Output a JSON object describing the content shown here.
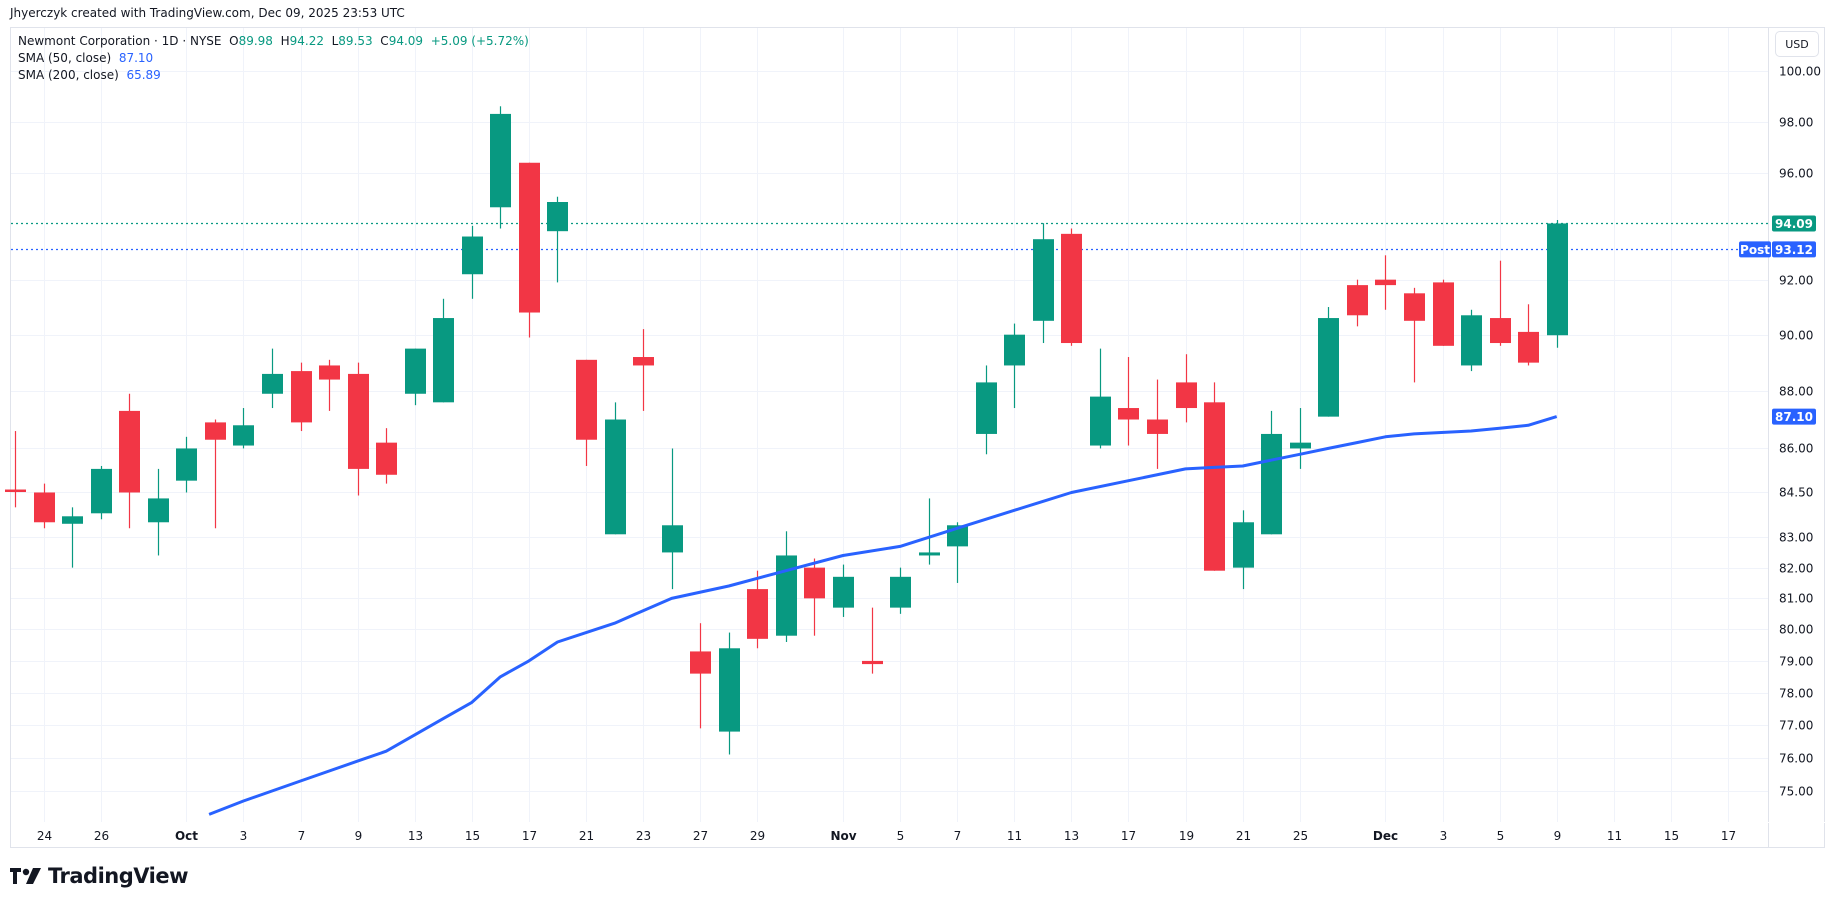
{
  "header": {
    "credit": "Jhyerczyk created with TradingView.com, Dec 09, 2025 23:53 UTC"
  },
  "legend": {
    "symbol": "Newmont Corporation · 1D · NYSE",
    "open_label": "O",
    "open": "89.98",
    "high_label": "H",
    "high": "94.22",
    "low_label": "L",
    "low": "89.53",
    "close_label": "C",
    "close": "94.09",
    "change": "+5.09 (+5.72%)",
    "sma50_label": "SMA (50, close)",
    "sma50_value": "87.10",
    "sma200_label": "SMA (200, close)",
    "sma200_value": "65.89"
  },
  "price_axis": {
    "currency": "USD",
    "last_price_label": "94.09",
    "post_label": "Post",
    "post_price": "93.12",
    "sma_label": "87.10"
  },
  "colors": {
    "up": "#089981",
    "down": "#f23645",
    "sma50": "#2962ff",
    "grid": "#f0f3fa",
    "post": "#2962ff"
  },
  "footer": {
    "brand": "TradingView"
  },
  "chart_data": {
    "type": "candlestick",
    "title": "Newmont Corporation · 1D · NYSE",
    "scale": "log",
    "ylim": [
      74.3,
      101.2
    ],
    "yticks": [
      100,
      98,
      96,
      92,
      90,
      88,
      86,
      84.5,
      83,
      82,
      81,
      80,
      79,
      78,
      77,
      76,
      75
    ],
    "xtick_labels": [
      {
        "i": 1,
        "label": "24"
      },
      {
        "i": 3,
        "label": "26"
      },
      {
        "i": 6,
        "label": "Oct",
        "bold": true
      },
      {
        "i": 8,
        "label": "3"
      },
      {
        "i": 10,
        "label": "7"
      },
      {
        "i": 12,
        "label": "9"
      },
      {
        "i": 14,
        "label": "13"
      },
      {
        "i": 16,
        "label": "15"
      },
      {
        "i": 18,
        "label": "17"
      },
      {
        "i": 20,
        "label": "21"
      },
      {
        "i": 22,
        "label": "23"
      },
      {
        "i": 24,
        "label": "27"
      },
      {
        "i": 26,
        "label": "29"
      },
      {
        "i": 29,
        "label": "Nov",
        "bold": true
      },
      {
        "i": 31,
        "label": "5"
      },
      {
        "i": 33,
        "label": "7"
      },
      {
        "i": 35,
        "label": "11"
      },
      {
        "i": 37,
        "label": "13"
      },
      {
        "i": 39,
        "label": "17"
      },
      {
        "i": 41,
        "label": "19"
      },
      {
        "i": 43,
        "label": "21"
      },
      {
        "i": 45,
        "label": "25"
      },
      {
        "i": 48,
        "label": "Dec",
        "bold": true
      },
      {
        "i": 50,
        "label": "3"
      },
      {
        "i": 52,
        "label": "5"
      },
      {
        "i": 54,
        "label": "9"
      },
      {
        "i": 56,
        "label": "11"
      },
      {
        "i": 58,
        "label": "15"
      },
      {
        "i": 60,
        "label": "17"
      }
    ],
    "dates": [
      "Sep 23",
      "Sep 24",
      "Sep 25",
      "Sep 26",
      "Sep 29",
      "Sep 30",
      "Oct 1",
      "Oct 2",
      "Oct 3",
      "Oct 6",
      "Oct 7",
      "Oct 8",
      "Oct 9",
      "Oct 10",
      "Oct 13",
      "Oct 14",
      "Oct 15",
      "Oct 16",
      "Oct 17",
      "Oct 20",
      "Oct 21",
      "Oct 22",
      "Oct 23",
      "Oct 24",
      "Oct 27",
      "Oct 28",
      "Oct 29",
      "Oct 30",
      "Oct 31",
      "Nov 3",
      "Nov 4",
      "Nov 5",
      "Nov 6",
      "Nov 7",
      "Nov 10",
      "Nov 11",
      "Nov 12",
      "Nov 13",
      "Nov 14",
      "Nov 17",
      "Nov 18",
      "Nov 19",
      "Nov 20",
      "Nov 21",
      "Nov 24",
      "Nov 25",
      "Nov 26",
      "Nov 28",
      "Dec 1",
      "Dec 2",
      "Dec 3",
      "Dec 4",
      "Dec 5",
      "Dec 8",
      "Dec 9"
    ],
    "ohlc": [
      [
        84.6,
        86.6,
        84.0,
        84.55
      ],
      [
        84.5,
        84.8,
        83.3,
        83.5
      ],
      [
        83.45,
        84.0,
        82.0,
        83.7
      ],
      [
        83.8,
        85.4,
        83.6,
        85.3
      ],
      [
        87.3,
        87.9,
        83.3,
        84.5
      ],
      [
        83.5,
        85.3,
        82.4,
        84.3
      ],
      [
        84.9,
        86.4,
        84.5,
        86.0
      ],
      [
        86.9,
        87.0,
        83.3,
        86.3
      ],
      [
        86.1,
        87.4,
        86.0,
        86.8
      ],
      [
        87.9,
        89.5,
        87.4,
        88.6
      ],
      [
        88.7,
        89.0,
        86.6,
        86.9
      ],
      [
        88.9,
        89.1,
        87.3,
        88.4
      ],
      [
        88.6,
        89.0,
        84.4,
        85.3
      ],
      [
        86.2,
        86.7,
        84.8,
        85.1
      ],
      [
        87.9,
        89.5,
        87.5,
        89.5
      ],
      [
        87.6,
        91.3,
        87.6,
        90.6
      ],
      [
        92.2,
        94.0,
        91.3,
        93.6
      ],
      [
        94.7,
        98.6,
        93.9,
        98.3
      ],
      [
        96.4,
        96.4,
        89.9,
        90.8
      ],
      [
        93.8,
        95.1,
        91.9,
        94.9
      ],
      [
        89.1,
        89.1,
        85.4,
        86.3
      ],
      [
        83.1,
        87.6,
        83.1,
        87.0
      ],
      [
        89.2,
        90.2,
        87.3,
        88.9
      ],
      [
        82.5,
        86.0,
        81.3,
        83.4
      ],
      [
        79.3,
        80.2,
        76.9,
        78.6
      ],
      [
        76.8,
        79.9,
        76.1,
        79.4
      ],
      [
        81.3,
        81.9,
        79.4,
        79.7
      ],
      [
        79.8,
        83.2,
        79.6,
        82.4
      ],
      [
        82.0,
        82.3,
        79.8,
        81.0
      ],
      [
        80.7,
        82.1,
        80.4,
        81.7
      ],
      [
        79.0,
        80.7,
        78.6,
        78.9
      ],
      [
        80.7,
        82.0,
        80.5,
        81.7
      ],
      [
        82.4,
        84.3,
        82.1,
        82.5
      ],
      [
        82.7,
        83.5,
        81.5,
        83.4
      ],
      [
        86.5,
        88.9,
        85.8,
        88.3
      ],
      [
        88.9,
        90.4,
        87.4,
        90.0
      ],
      [
        90.5,
        94.1,
        89.7,
        93.5
      ],
      [
        93.7,
        93.9,
        89.6,
        89.7
      ],
      [
        86.1,
        89.5,
        86.0,
        87.8
      ],
      [
        87.4,
        89.2,
        86.1,
        87.0
      ],
      [
        87.0,
        88.4,
        85.3,
        86.5
      ],
      [
        88.3,
        89.3,
        86.9,
        87.4
      ],
      [
        87.6,
        88.3,
        81.9,
        81.9
      ],
      [
        82.0,
        83.9,
        81.3,
        83.5
      ],
      [
        83.1,
        87.3,
        83.1,
        86.5
      ],
      [
        86.0,
        87.4,
        85.3,
        86.2
      ],
      [
        87.1,
        91.0,
        87.1,
        90.6
      ],
      [
        91.8,
        92.0,
        90.3,
        90.7
      ],
      [
        92.0,
        92.9,
        90.9,
        91.8
      ],
      [
        91.5,
        91.7,
        88.3,
        90.5
      ],
      [
        91.9,
        92.0,
        89.6,
        89.6
      ],
      [
        88.9,
        90.9,
        88.7,
        90.7
      ],
      [
        90.6,
        92.7,
        89.6,
        89.7
      ],
      [
        90.1,
        91.1,
        88.9,
        89.0
      ],
      [
        89.98,
        94.22,
        89.53,
        94.09
      ]
    ],
    "series": [
      {
        "name": "SMA (50, close)",
        "type": "line",
        "color": "#2962ff",
        "points": [
          [
            6.8,
            74.3
          ],
          [
            8,
            74.7
          ],
          [
            10,
            75.3
          ],
          [
            12,
            75.9
          ],
          [
            13,
            76.2
          ],
          [
            15,
            77.2
          ],
          [
            16,
            77.7
          ],
          [
            17,
            78.5
          ],
          [
            18,
            79.0
          ],
          [
            19,
            79.6
          ],
          [
            21,
            80.2
          ],
          [
            22,
            80.6
          ],
          [
            23,
            81.0
          ],
          [
            25,
            81.4
          ],
          [
            27,
            81.9
          ],
          [
            29,
            82.4
          ],
          [
            31,
            82.7
          ],
          [
            33,
            83.3
          ],
          [
            35,
            83.9
          ],
          [
            36,
            84.2
          ],
          [
            37,
            84.5
          ],
          [
            39,
            84.9
          ],
          [
            41,
            85.3
          ],
          [
            42,
            85.35
          ],
          [
            43,
            85.4
          ],
          [
            45,
            85.8
          ],
          [
            46,
            86.0
          ],
          [
            47,
            86.2
          ],
          [
            48,
            86.4
          ],
          [
            49,
            86.5
          ],
          [
            51,
            86.6
          ],
          [
            52,
            86.7
          ],
          [
            53,
            86.8
          ],
          [
            54,
            87.1
          ]
        ]
      },
      {
        "name": "Last price",
        "type": "hline",
        "value": 94.09,
        "color": "#089981"
      },
      {
        "name": "Post-market",
        "type": "hline",
        "value": 93.12,
        "color": "#2962ff"
      }
    ]
  }
}
